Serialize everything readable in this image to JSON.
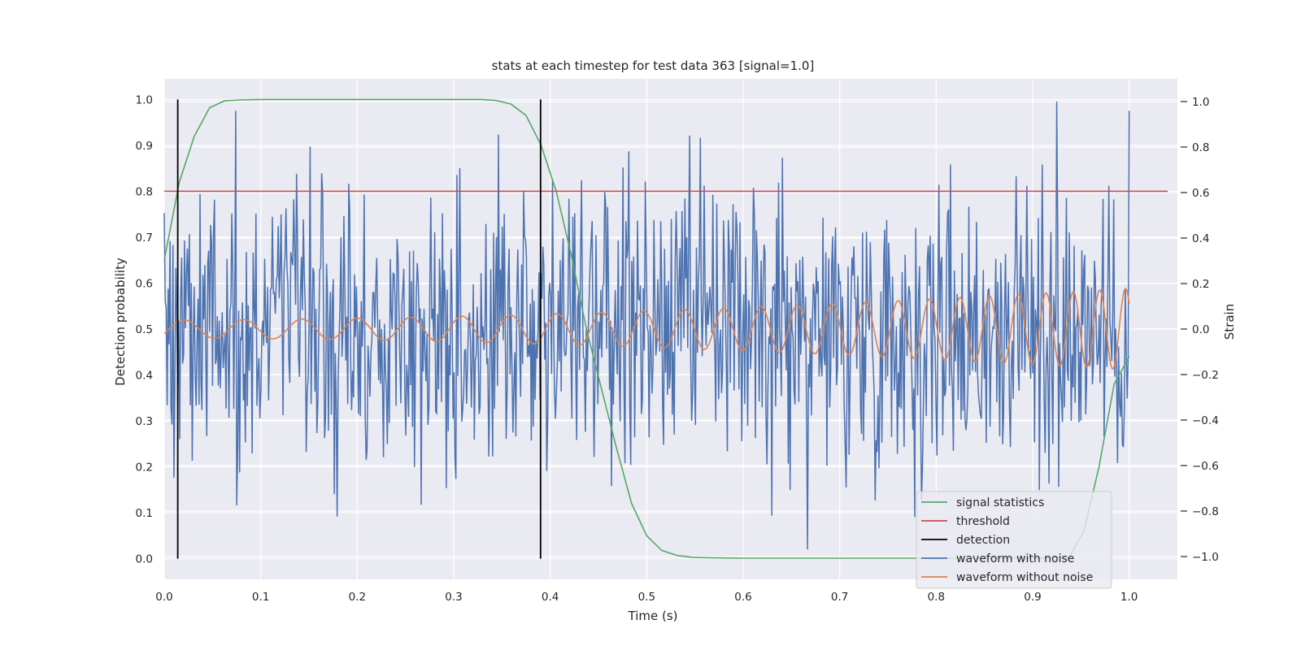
{
  "chart_data": {
    "type": "line",
    "title": "stats at each timestep for test data 363 [signal=1.0]",
    "xlabel": "Time (s)",
    "ylabel": "Detection probability",
    "y2label": "Strain",
    "xlim": [
      0.0,
      1.05
    ],
    "ylim": [
      -0.045,
      1.045
    ],
    "y2lim": [
      -1.1,
      1.1
    ],
    "grid": true,
    "legend_position": "lower right",
    "x_ticks": [
      "0.0",
      "0.1",
      "0.2",
      "0.3",
      "0.4",
      "0.5",
      "0.6",
      "0.7",
      "0.8",
      "0.9",
      "1.0"
    ],
    "y_ticks": [
      "0.0",
      "0.1",
      "0.2",
      "0.3",
      "0.4",
      "0.5",
      "0.6",
      "0.7",
      "0.8",
      "0.9",
      "1.0"
    ],
    "y2_ticks": [
      "−1.0",
      "−0.8",
      "−0.6",
      "−0.4",
      "−0.2",
      "0.0",
      "0.2",
      "0.4",
      "0.6",
      "0.8",
      "1.0"
    ],
    "colors": {
      "signal_statistics": "#55a868",
      "threshold": "#c44e52",
      "detection": "#000000",
      "waveform_with_noise": "#4c72b0",
      "waveform_without_noise": "#dd8452",
      "axes_background": "#eaeaf2",
      "grid": "#ffffff"
    },
    "series": [
      {
        "name": "signal statistics",
        "axis": "left",
        "x": [
          0.0,
          0.0156,
          0.0312,
          0.0469,
          0.0625,
          0.0781,
          0.1,
          0.2,
          0.3,
          0.3281,
          0.3438,
          0.3594,
          0.375,
          0.3906,
          0.4063,
          0.4219,
          0.4375,
          0.4531,
          0.4688,
          0.4844,
          0.5,
          0.5156,
          0.5313,
          0.5469,
          0.5625,
          0.6,
          0.7,
          0.8,
          0.9,
          0.9375,
          0.9531,
          0.9688,
          0.9844,
          1.0
        ],
        "values": [
          0.65,
          0.82,
          0.92,
          0.982,
          0.997,
          0.999,
          1.0,
          1.0,
          1.0,
          1.0,
          0.998,
          0.99,
          0.965,
          0.9,
          0.8,
          0.66,
          0.5,
          0.37,
          0.24,
          0.12,
          0.05,
          0.018,
          0.007,
          0.003,
          0.002,
          0.001,
          0.001,
          0.001,
          0.001,
          0.003,
          0.06,
          0.2,
          0.38,
          0.44
        ]
      },
      {
        "name": "threshold",
        "axis": "left",
        "x": [
          0.0,
          1.04
        ],
        "values": [
          0.8,
          0.8
        ]
      },
      {
        "name": "detection",
        "axis": "left",
        "x": [
          0.014,
          0.39
        ],
        "values": [
          1.0,
          1.0
        ]
      },
      {
        "name": "waveform with noise",
        "axis": "right",
        "note_values": "noise-like strain, amplitude approx ±0.6 around 0.0 (peak 1.0 near t=0.925)",
        "values_count": 1000
      },
      {
        "name": "waveform without noise",
        "axis": "right",
        "x_range": [
          0.0,
          1.0
        ],
        "amplitude_start": 0.04,
        "amplitude_end": 0.18,
        "frequency_start_hz": 16,
        "frequency_end_hz": 38
      }
    ]
  }
}
